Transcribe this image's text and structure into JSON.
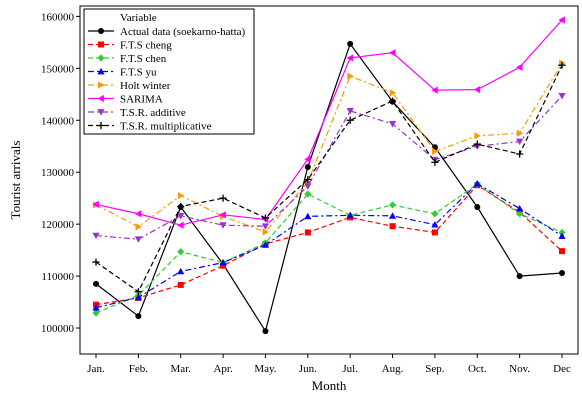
{
  "chart_data": {
    "type": "line",
    "xlabel": "Month",
    "ylabel": "Tourist arrivals",
    "categories": [
      "Jan.",
      "Feb.",
      "Mar.",
      "Apr.",
      "May.",
      "Jun.",
      "Jul.",
      "Aug.",
      "Sep.",
      "Oct.",
      "Nov.",
      "Dec"
    ],
    "ylim": [
      95000,
      162000
    ],
    "yticks": [
      100000,
      110000,
      120000,
      130000,
      140000,
      150000,
      160000
    ],
    "ytick_labels": [
      "100000",
      "110000",
      "120000",
      "130000",
      "140000",
      "150000",
      "160000"
    ],
    "grid": false,
    "legend": {
      "title": "Variable",
      "placement": "top-left"
    },
    "series": [
      {
        "name": "Actual data (soekarno-hatta)",
        "color": "#000000",
        "marker": "circle",
        "dash": "solid",
        "values": [
          108500,
          102300,
          123300,
          112300,
          99400,
          131000,
          154700,
          143600,
          134800,
          123300,
          110000,
          110600
        ]
      },
      {
        "name": "F.T.S cheng",
        "color": "#ff0000",
        "marker": "square",
        "dash": "dashed",
        "values": [
          104500,
          105800,
          108300,
          112000,
          116200,
          118400,
          121300,
          119600,
          118400,
          127500,
          122300,
          114800
        ]
      },
      {
        "name": "F.T.S chen",
        "color": "#33cc33",
        "marker": "diamond",
        "dash": "dashed",
        "values": [
          102900,
          106300,
          114700,
          112600,
          116400,
          125800,
          121700,
          123700,
          122000,
          127700,
          122000,
          118400
        ]
      },
      {
        "name": "F.T.S yu",
        "color": "#0000ff",
        "marker": "triangle-up",
        "dash": "dashdot",
        "values": [
          103900,
          105900,
          110900,
          112600,
          116000,
          121500,
          121700,
          121600,
          119900,
          127800,
          123000,
          117700
        ]
      },
      {
        "name": "Holt winter",
        "color": "#ff9900",
        "marker": "triangle-right",
        "dash": "dashdot",
        "values": [
          123700,
          119500,
          125500,
          121500,
          118500,
          128100,
          148500,
          145300,
          134000,
          137000,
          137500,
          151000
        ]
      },
      {
        "name": "SARIMA",
        "color": "#ff00ff",
        "marker": "triangle-left",
        "dash": "solid",
        "values": [
          123800,
          122000,
          119800,
          121800,
          120900,
          132500,
          152000,
          153000,
          145800,
          145900,
          150200,
          159300
        ]
      },
      {
        "name": "T.S.R. additive",
        "color": "#9933cc",
        "marker": "triangle-down",
        "dash": "dashdot",
        "values": [
          117800,
          117100,
          121600,
          119800,
          119600,
          127300,
          141800,
          139300,
          132400,
          135000,
          135900,
          144700
        ]
      },
      {
        "name": "T.S.R. multiplicative",
        "color": "#000000",
        "marker": "plus",
        "dash": "dashed",
        "values": [
          112700,
          107000,
          123400,
          125000,
          121200,
          128600,
          140000,
          143700,
          131900,
          135400,
          133500,
          150600
        ]
      }
    ]
  }
}
